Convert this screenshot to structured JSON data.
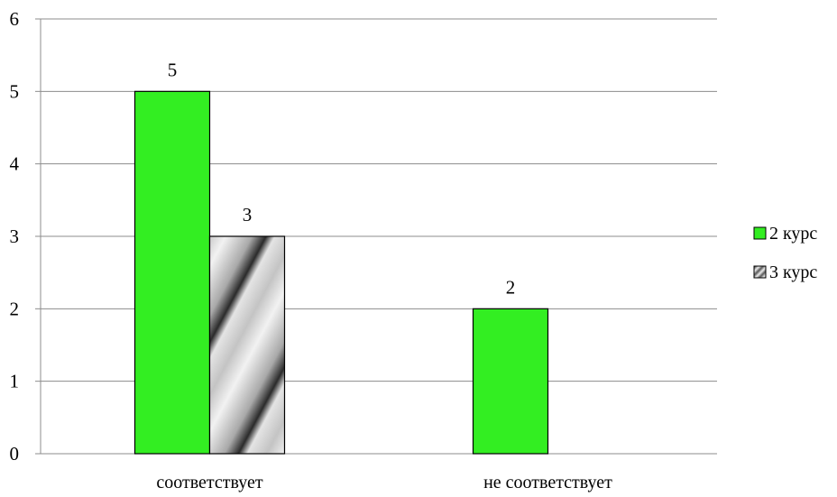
{
  "chart_data": {
    "type": "bar",
    "categories": [
      "соответствует",
      "не соответствует"
    ],
    "series": [
      {
        "name": "2 курс",
        "values": [
          5,
          2
        ],
        "color": "#33ee22",
        "fill": "solid"
      },
      {
        "name": "3 курс",
        "values": [
          3,
          0
        ],
        "color": "#b8b8b8",
        "fill": "diagonal-gradient-stripes"
      }
    ],
    "data_labels": [
      [
        "5",
        "2"
      ],
      [
        "3",
        null
      ]
    ],
    "ylim": [
      0,
      6
    ],
    "yticks": [
      0,
      1,
      2,
      3,
      4,
      5,
      6
    ],
    "grid": true,
    "legend_position": "right",
    "title": "",
    "xlabel": "",
    "ylabel": ""
  }
}
